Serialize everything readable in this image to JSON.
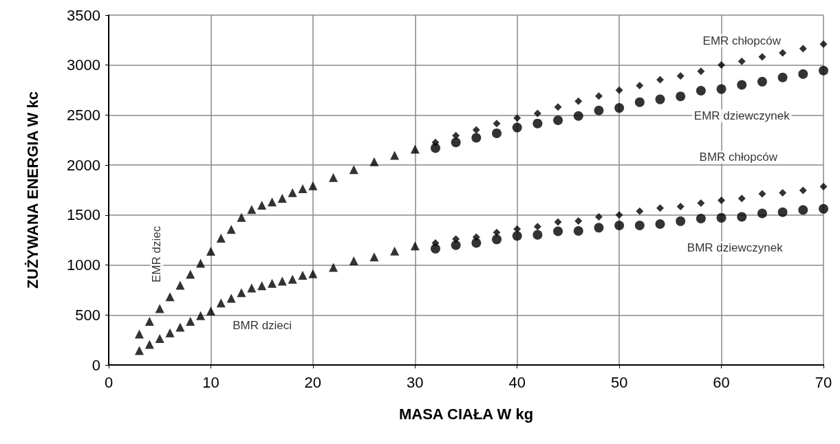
{
  "chart_data": {
    "type": "scatter",
    "xlabel": "MASA CIAŁA W kg",
    "ylabel": "ZUŻYWANA ENERGIA W kc",
    "xlim": [
      0,
      70
    ],
    "xticks": [
      0,
      10,
      20,
      30,
      40,
      50,
      60,
      70
    ],
    "ylim": [
      0,
      3500
    ],
    "yticks": [
      0,
      500,
      1000,
      1500,
      2000,
      2500,
      3000,
      3500
    ],
    "grid": true,
    "legend": false,
    "series": [
      {
        "name": "EMR dziec",
        "color": "#000000",
        "marker": "triangle",
        "x": [
          3,
          4,
          5,
          6,
          7,
          8,
          9,
          10,
          11,
          12,
          13,
          14,
          15,
          16,
          17,
          18,
          19,
          20,
          22,
          24,
          26,
          28,
          30
        ],
        "values": [
          310,
          437,
          563,
          683,
          798,
          908,
          1018,
          1138,
          1269,
          1356,
          1476,
          1556,
          1598,
          1632,
          1667,
          1724,
          1763,
          1793,
          1875,
          1955,
          2034,
          2098,
          2159
        ]
      },
      {
        "name": "BMR dzieci",
        "color": "#000000",
        "marker": "triangle",
        "x": [
          3,
          4,
          5,
          6,
          7,
          8,
          9,
          10,
          11,
          12,
          13,
          14,
          15,
          16,
          17,
          18,
          19,
          20,
          22,
          24,
          26,
          28,
          30
        ],
        "values": [
          145,
          207,
          264,
          322,
          379,
          437,
          494,
          540,
          621,
          667,
          724,
          770,
          793,
          816,
          839,
          857,
          897,
          913,
          977,
          1042,
          1081,
          1140,
          1191
        ]
      },
      {
        "name": "EMR chłopców",
        "color": "#000000",
        "marker": "diamond",
        "x": [
          32,
          34,
          36,
          38,
          40,
          42,
          44,
          46,
          48,
          50,
          52,
          54,
          56,
          58,
          60,
          62,
          64,
          66,
          68,
          70
        ],
        "values": [
          2227,
          2295,
          2352,
          2416,
          2470,
          2516,
          2580,
          2638,
          2691,
          2749,
          2795,
          2853,
          2892,
          2938,
          3002,
          3037,
          3083,
          3122,
          3164,
          3210
        ]
      },
      {
        "name": "EMR dziewczynek",
        "color": "#000000",
        "marker": "circle",
        "x": [
          32,
          34,
          36,
          38,
          40,
          42,
          44,
          46,
          48,
          50,
          52,
          54,
          56,
          58,
          60,
          62,
          64,
          66,
          68,
          70
        ],
        "values": [
          2170,
          2227,
          2273,
          2318,
          2375,
          2416,
          2448,
          2491,
          2546,
          2571,
          2629,
          2657,
          2687,
          2744,
          2760,
          2802,
          2834,
          2876,
          2910,
          2945
        ]
      },
      {
        "name": "BMR chłopców",
        "color": "#000000",
        "marker": "diamond",
        "x": [
          32,
          34,
          36,
          38,
          40,
          42,
          44,
          46,
          48,
          50,
          52,
          54,
          56,
          58,
          60,
          62,
          64,
          66,
          68,
          70
        ],
        "values": [
          1221,
          1260,
          1279,
          1326,
          1360,
          1384,
          1430,
          1440,
          1482,
          1500,
          1539,
          1569,
          1585,
          1620,
          1647,
          1666,
          1712,
          1723,
          1746,
          1785
        ]
      },
      {
        "name": "BMR dziewczynek",
        "color": "#000000",
        "marker": "circle",
        "x": [
          32,
          34,
          36,
          38,
          40,
          42,
          44,
          46,
          48,
          50,
          52,
          54,
          56,
          58,
          60,
          62,
          64,
          66,
          68,
          70
        ],
        "values": [
          1163,
          1198,
          1221,
          1256,
          1291,
          1302,
          1337,
          1341,
          1373,
          1396,
          1396,
          1410,
          1438,
          1465,
          1472,
          1482,
          1516,
          1528,
          1551,
          1562
        ]
      }
    ]
  }
}
